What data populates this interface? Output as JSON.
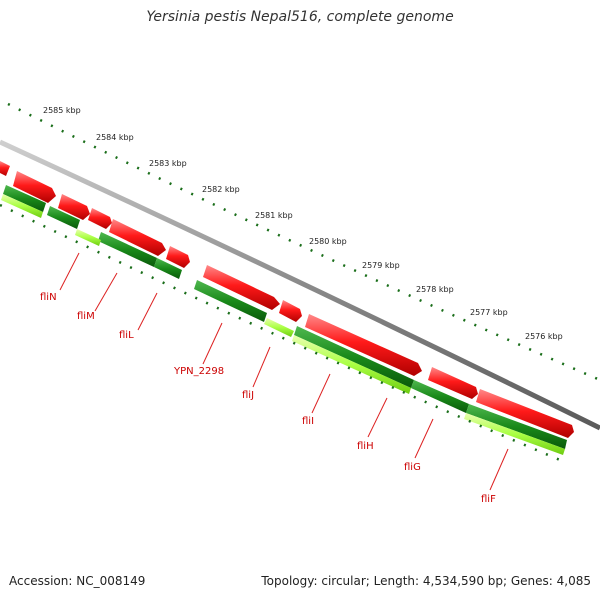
{
  "title": "Yersinia pestis Nepal516, complete genome",
  "footer": {
    "accession": "Accession: NC_008149",
    "summary": "Topology: circular; Length: 4,534,590 bp; Genes: 4,085"
  },
  "colors": {
    "forward_feature": "#ee1111",
    "gene": "#1a8a1a",
    "cds": "#aaff44",
    "backbone": "#8a8a8a",
    "ticks": "#1a6e1a",
    "label": "#cc0000"
  },
  "kbp_labels": [
    "2585 kbp",
    "2584 kbp",
    "2583 kbp",
    "2582 kbp",
    "2581 kbp",
    "2580 kbp",
    "2579 kbp",
    "2578 kbp",
    "2577 kbp",
    "2576 kbp"
  ],
  "gene_labels": [
    "fliN",
    "fliM",
    "fliL",
    "YPN_2298",
    "fliJ",
    "fliI",
    "fliH",
    "fliG",
    "fliF"
  ]
}
